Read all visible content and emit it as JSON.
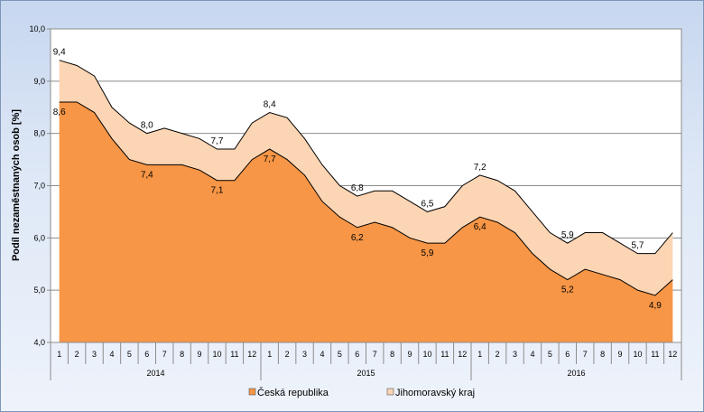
{
  "chart_data": {
    "type": "area",
    "ylabel": "Podíl nezaměstnaných osob [%]",
    "ylim": [
      4.0,
      10.0
    ],
    "y_ticks": [
      "4,0",
      "5,0",
      "6,0",
      "7,0",
      "8,0",
      "9,0",
      "10,0"
    ],
    "grid": "horizontal",
    "legend_placement": "bottom",
    "month_labels": [
      "1",
      "2",
      "3",
      "4",
      "5",
      "6",
      "7",
      "8",
      "9",
      "10",
      "11",
      "12",
      "1",
      "2",
      "3",
      "4",
      "5",
      "6",
      "7",
      "8",
      "9",
      "10",
      "11",
      "12",
      "1",
      "2",
      "3",
      "4",
      "5",
      "6",
      "7",
      "8",
      "9",
      "10",
      "11",
      "12"
    ],
    "years": [
      "2014",
      "2015",
      "2016"
    ],
    "series": [
      {
        "name": "Jihomoravský kraj",
        "color": "#fcd5b4",
        "values": [
          9.4,
          9.3,
          9.1,
          8.5,
          8.2,
          8.0,
          8.1,
          8.0,
          7.9,
          7.7,
          7.7,
          8.2,
          8.4,
          8.3,
          7.9,
          7.4,
          7.0,
          6.8,
          6.9,
          6.9,
          6.7,
          6.5,
          6.6,
          7.0,
          7.2,
          7.1,
          6.9,
          6.5,
          6.1,
          5.9,
          6.1,
          6.1,
          5.9,
          5.7,
          5.7,
          6.1
        ]
      },
      {
        "name": "Česká republika",
        "color": "#f79646",
        "values": [
          8.6,
          8.6,
          8.4,
          7.9,
          7.5,
          7.4,
          7.4,
          7.4,
          7.3,
          7.1,
          7.1,
          7.5,
          7.7,
          7.5,
          7.2,
          6.7,
          6.4,
          6.2,
          6.3,
          6.2,
          6.0,
          5.9,
          5.9,
          6.2,
          6.4,
          6.3,
          6.1,
          5.7,
          5.4,
          5.2,
          5.4,
          5.3,
          5.2,
          5.0,
          4.9,
          5.2
        ]
      }
    ],
    "data_labels": [
      {
        "series": 0,
        "index": 0,
        "text": "9,4"
      },
      {
        "series": 0,
        "index": 5,
        "text": "8,0"
      },
      {
        "series": 0,
        "index": 9,
        "text": "7,7"
      },
      {
        "series": 0,
        "index": 12,
        "text": "8,4"
      },
      {
        "series": 0,
        "index": 17,
        "text": "6,8"
      },
      {
        "series": 0,
        "index": 21,
        "text": "6,5"
      },
      {
        "series": 0,
        "index": 24,
        "text": "7,2"
      },
      {
        "series": 0,
        "index": 29,
        "text": "5,9"
      },
      {
        "series": 0,
        "index": 33,
        "text": "5,7"
      },
      {
        "series": 1,
        "index": 0,
        "text": "8,6"
      },
      {
        "series": 1,
        "index": 5,
        "text": "7,4"
      },
      {
        "series": 1,
        "index": 9,
        "text": "7,1"
      },
      {
        "series": 1,
        "index": 12,
        "text": "7,7"
      },
      {
        "series": 1,
        "index": 17,
        "text": "6,2"
      },
      {
        "series": 1,
        "index": 21,
        "text": "5,9"
      },
      {
        "series": 1,
        "index": 24,
        "text": "6,4"
      },
      {
        "series": 1,
        "index": 29,
        "text": "5,2"
      },
      {
        "series": 1,
        "index": 34,
        "text": "4,9"
      }
    ]
  }
}
